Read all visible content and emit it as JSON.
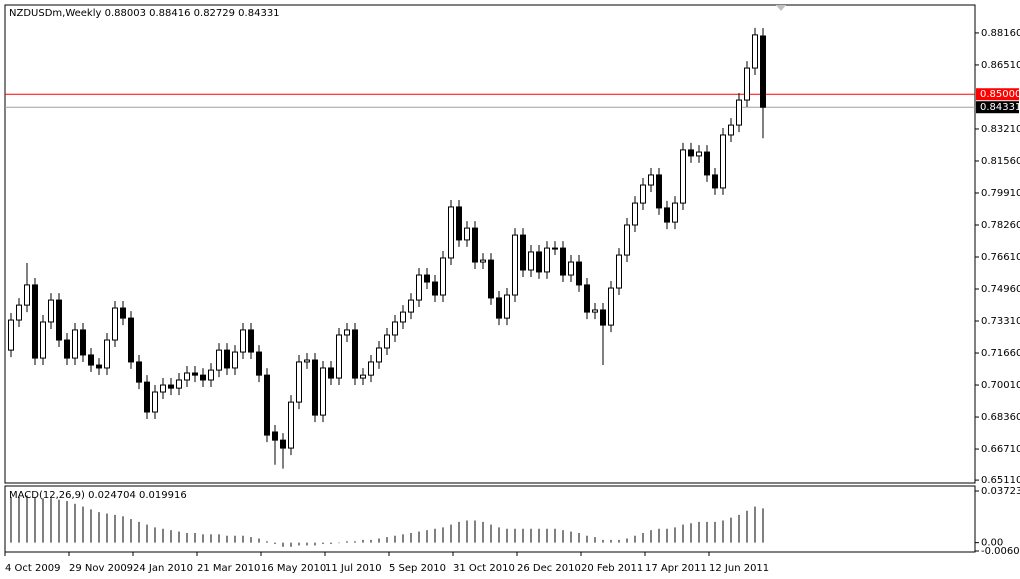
{
  "chart_data": {
    "type": "candlestick",
    "header": "NZDUSDm,Weekly  0.88003 0.88416 0.82729 0.84331",
    "categories": [
      "4 Oct 2009",
      null,
      null,
      null,
      null,
      null,
      null,
      null,
      "29 Nov 2009",
      null,
      null,
      null,
      null,
      null,
      null,
      null,
      "24 Jan 2010",
      null,
      null,
      null,
      null,
      null,
      null,
      null,
      "21 Mar 2010",
      null,
      null,
      null,
      null,
      null,
      null,
      null,
      "16 May 2010",
      null,
      null,
      null,
      null,
      null,
      null,
      null,
      "11 Jul 2010",
      null,
      null,
      null,
      null,
      null,
      null,
      null,
      "5 Sep 2010",
      null,
      null,
      null,
      null,
      null,
      null,
      null,
      "31 Oct 2010",
      null,
      null,
      null,
      null,
      null,
      null,
      null,
      "26 Dec 2010",
      null,
      null,
      null,
      null,
      null,
      null,
      null,
      "20 Feb 2011",
      null,
      null,
      null,
      null,
      null,
      null,
      null,
      "17 Apr 2011",
      null,
      null,
      null,
      null,
      null,
      null,
      null,
      "12 Jun 2011",
      null,
      null,
      null,
      null,
      null,
      null
    ],
    "open": [
      0.7181,
      0.7336,
      0.7413,
      0.7517,
      0.714,
      0.7326,
      0.7439,
      0.7233,
      0.714,
      0.7285,
      0.7156,
      0.7104,
      0.7089,
      0.7233,
      0.7398,
      0.7346,
      0.712,
      0.7016,
      0.6862,
      0.6965,
      0.7001,
      0.6985,
      0.7027,
      0.7063,
      0.7052,
      0.7027,
      0.7078,
      0.7181,
      0.7089,
      0.7171,
      0.7285,
      0.7171,
      0.7052,
      0.6759,
      0.6717,
      0.6676,
      0.6913,
      0.712,
      0.713,
      0.6846,
      0.7089,
      0.7037,
      0.7259,
      0.7285,
      0.7037,
      0.7052,
      0.712,
      0.7192,
      0.7259,
      0.7326,
      0.7377,
      0.7439,
      0.7568,
      0.7532,
      0.7465,
      0.7656,
      0.7919,
      0.7749,
      0.781,
      0.7635,
      0.7645,
      0.745,
      0.7346,
      0.7465,
      0.7774,
      0.7594,
      0.7687,
      0.7584,
      0.7707,
      0.7707,
      0.7568,
      0.7635,
      0.7517,
      0.7377,
      0.7388,
      0.731,
      0.7501,
      0.7671,
      0.7826,
      0.7939,
      0.8032,
      0.8084,
      0.7914,
      0.7841,
      0.7939,
      0.8213,
      0.8182,
      0.8202,
      0.8084,
      0.8017,
      0.829,
      0.8341,
      0.847,
      0.8635,
      0.88003
    ],
    "high": [
      0.7372,
      0.7449,
      0.763,
      0.7553,
      0.7362,
      0.7475,
      0.7475,
      0.7269,
      0.7321,
      0.7321,
      0.7192,
      0.714,
      0.7269,
      0.7434,
      0.7434,
      0.7382,
      0.7156,
      0.7052,
      0.7001,
      0.7037,
      0.7037,
      0.7063,
      0.7099,
      0.7099,
      0.7088,
      0.7114,
      0.7217,
      0.7217,
      0.7207,
      0.7321,
      0.7321,
      0.7207,
      0.7088,
      0.6795,
      0.6753,
      0.6949,
      0.7156,
      0.7166,
      0.7166,
      0.7125,
      0.7125,
      0.7295,
      0.7321,
      0.7321,
      0.7088,
      0.7156,
      0.7228,
      0.7295,
      0.7362,
      0.7413,
      0.7475,
      0.7604,
      0.7604,
      0.7568,
      0.7692,
      0.7955,
      0.7955,
      0.7846,
      0.7846,
      0.7681,
      0.7681,
      0.7486,
      0.7501,
      0.781,
      0.781,
      0.7723,
      0.7723,
      0.7743,
      0.7743,
      0.7743,
      0.7671,
      0.7671,
      0.7553,
      0.7424,
      0.7424,
      0.7537,
      0.7707,
      0.7862,
      0.7975,
      0.8068,
      0.812,
      0.812,
      0.795,
      0.7975,
      0.8249,
      0.8249,
      0.8238,
      0.8238,
      0.812,
      0.8326,
      0.8377,
      0.8506,
      0.8671,
      0.8842,
      0.88416
    ],
    "low": [
      0.7145,
      0.73,
      0.7377,
      0.7104,
      0.7104,
      0.729,
      0.7197,
      0.7104,
      0.7104,
      0.712,
      0.7068,
      0.7053,
      0.7053,
      0.7197,
      0.731,
      0.7084,
      0.698,
      0.6826,
      0.6826,
      0.6929,
      0.6949,
      0.6949,
      0.6991,
      0.7016,
      0.6991,
      0.6991,
      0.7042,
      0.7053,
      0.7053,
      0.7135,
      0.7135,
      0.7016,
      0.6707,
      0.659,
      0.657,
      0.664,
      0.6877,
      0.7084,
      0.681,
      0.681,
      0.7001,
      0.7001,
      0.7223,
      0.7001,
      0.7001,
      0.7016,
      0.7084,
      0.7156,
      0.7223,
      0.729,
      0.7341,
      0.7403,
      0.7496,
      0.7429,
      0.7429,
      0.762,
      0.7713,
      0.7713,
      0.7599,
      0.7599,
      0.7414,
      0.731,
      0.731,
      0.7429,
      0.7558,
      0.7558,
      0.7548,
      0.7548,
      0.7671,
      0.7532,
      0.7532,
      0.7481,
      0.7341,
      0.7341,
      0.7104,
      0.7274,
      0.7465,
      0.7635,
      0.779,
      0.7903,
      0.7996,
      0.7878,
      0.7805,
      0.7805,
      0.7903,
      0.8146,
      0.8146,
      0.8048,
      0.7981,
      0.7981,
      0.8254,
      0.8305,
      0.8434,
      0.8599,
      0.82729
    ],
    "close": [
      0.7336,
      0.7413,
      0.7517,
      0.714,
      0.7326,
      0.7439,
      0.7233,
      0.714,
      0.7285,
      0.7156,
      0.7104,
      0.7089,
      0.7233,
      0.7398,
      0.7346,
      0.712,
      0.7016,
      0.6862,
      0.6965,
      0.7001,
      0.6985,
      0.7027,
      0.7063,
      0.7052,
      0.7027,
      0.7078,
      0.7181,
      0.7089,
      0.7171,
      0.7285,
      0.7171,
      0.7052,
      0.6743,
      0.6717,
      0.6676,
      0.6913,
      0.712,
      0.713,
      0.6846,
      0.7089,
      0.7037,
      0.7259,
      0.7285,
      0.7037,
      0.7052,
      0.712,
      0.7192,
      0.7259,
      0.7326,
      0.7377,
      0.7439,
      0.7568,
      0.7532,
      0.7465,
      0.7656,
      0.7919,
      0.7749,
      0.781,
      0.7635,
      0.7645,
      0.745,
      0.7346,
      0.7465,
      0.7774,
      0.7594,
      0.7687,
      0.7584,
      0.7707,
      0.7707,
      0.7568,
      0.7635,
      0.7517,
      0.7377,
      0.7388,
      0.731,
      0.7501,
      0.7671,
      0.7826,
      0.7939,
      0.8032,
      0.8084,
      0.7914,
      0.7841,
      0.7939,
      0.8213,
      0.8182,
      0.8202,
      0.8084,
      0.8017,
      0.829,
      0.8341,
      0.847,
      0.8635,
      0.8806,
      0.84331
    ],
    "ylim": [
      0.6496,
      0.896
    ],
    "yticks": [
      {
        "value": 0.8816,
        "label": "0.88160"
      },
      {
        "value": 0.8651,
        "label": "0.86510"
      },
      {
        "value": 0.8321,
        "label": "0.83210"
      },
      {
        "value": 0.8156,
        "label": "0.81560"
      },
      {
        "value": 0.7991,
        "label": "0.79910"
      },
      {
        "value": 0.7826,
        "label": "0.78260"
      },
      {
        "value": 0.7661,
        "label": "0.76610"
      },
      {
        "value": 0.7496,
        "label": "0.74960"
      },
      {
        "value": 0.7331,
        "label": "0.73310"
      },
      {
        "value": 0.7166,
        "label": "0.71660"
      },
      {
        "value": 0.7001,
        "label": "0.70010"
      },
      {
        "value": 0.6836,
        "label": "0.68360"
      },
      {
        "value": 0.6671,
        "label": "0.66710"
      },
      {
        "value": 0.6511,
        "label": "0.65110"
      }
    ],
    "hlines": [
      {
        "value": 0.85,
        "label": "0.85000",
        "color": "#ff0000"
      },
      {
        "value": 0.84331,
        "label": "0.84331",
        "color": "#a0a0a0"
      }
    ],
    "macd": {
      "label": "MACD(12,26,9) 0.024704 0.019916",
      "values": [
        0.033,
        0.033,
        0.034,
        0.033,
        0.032,
        0.032,
        0.031,
        0.03,
        0.028,
        0.026,
        0.024,
        0.022,
        0.021,
        0.02,
        0.019,
        0.017,
        0.015,
        0.013,
        0.011,
        0.01,
        0.009,
        0.008,
        0.007,
        0.007,
        0.006,
        0.006,
        0.006,
        0.005,
        0.005,
        0.005,
        0.004,
        0.003,
        0.001,
        -0.001,
        -0.003,
        -0.003,
        -0.002,
        -0.002,
        -0.002,
        -0.001,
        -0.001,
        0.0,
        0.001,
        0.001,
        0.002,
        0.002,
        0.003,
        0.004,
        0.005,
        0.006,
        0.007,
        0.008,
        0.009,
        0.01,
        0.011,
        0.013,
        0.015,
        0.016,
        0.016,
        0.015,
        0.013,
        0.011,
        0.01,
        0.01,
        0.01,
        0.01,
        0.01,
        0.01,
        0.01,
        0.009,
        0.008,
        0.007,
        0.005,
        0.004,
        0.002,
        0.002,
        0.002,
        0.003,
        0.005,
        0.007,
        0.009,
        0.01,
        0.01,
        0.011,
        0.013,
        0.014,
        0.015,
        0.015,
        0.015,
        0.016,
        0.018,
        0.02,
        0.023,
        0.026,
        0.024704
      ],
      "ylim": [
        -0.006016,
        0.037234
      ],
      "yticks": [
        0.037234,
        {
          "value": 0,
          "label": "0.00"
        },
        -0.006016
      ]
    }
  }
}
